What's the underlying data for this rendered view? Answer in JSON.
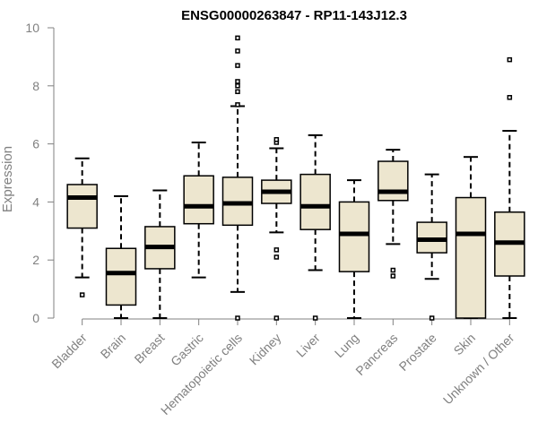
{
  "chart_data": {
    "type": "box",
    "title": "ENSG00000263847 - RP11-143J12.3",
    "ylabel": "Expression",
    "xlabel": "",
    "ylim": [
      0,
      10
    ],
    "yticks": [
      0,
      2,
      4,
      6,
      8,
      10
    ],
    "colors": {
      "box_fill": "#ede6cf",
      "box_edge": "#000000",
      "axis": "#808080",
      "text": "#808080",
      "title": "#000000"
    },
    "categories": [
      "Bladder",
      "Brain",
      "Breast",
      "Gastric",
      "Hematopoietic cells",
      "Kidney",
      "Liver",
      "Lung",
      "Pancreas",
      "Prostate",
      "Skin",
      "Unknown / Other"
    ],
    "boxes": [
      {
        "name": "Bladder",
        "lower_whisker": 1.4,
        "q1": 3.1,
        "median": 4.15,
        "q3": 4.6,
        "upper_whisker": 5.5,
        "outliers": [
          0.8
        ]
      },
      {
        "name": "Brain",
        "lower_whisker": 0.0,
        "q1": 0.45,
        "median": 1.55,
        "q3": 2.4,
        "upper_whisker": 4.2,
        "outliers": []
      },
      {
        "name": "Breast",
        "lower_whisker": 0.0,
        "q1": 1.7,
        "median": 2.45,
        "q3": 3.15,
        "upper_whisker": 4.4,
        "outliers": []
      },
      {
        "name": "Gastric",
        "lower_whisker": 1.4,
        "q1": 3.25,
        "median": 3.85,
        "q3": 4.9,
        "upper_whisker": 6.05,
        "outliers": []
      },
      {
        "name": "Hematopoietic cells",
        "lower_whisker": 0.9,
        "q1": 3.2,
        "median": 3.95,
        "q3": 4.85,
        "upper_whisker": 7.3,
        "outliers": [
          0.0,
          7.35,
          7.8,
          8.0,
          8.15,
          8.7,
          9.2,
          9.65
        ]
      },
      {
        "name": "Kidney",
        "lower_whisker": 2.95,
        "q1": 3.95,
        "median": 4.35,
        "q3": 4.75,
        "upper_whisker": 5.85,
        "outliers": [
          0.0,
          2.1,
          2.35,
          6.05,
          6.15
        ]
      },
      {
        "name": "Liver",
        "lower_whisker": 1.65,
        "q1": 3.05,
        "median": 3.85,
        "q3": 4.95,
        "upper_whisker": 6.3,
        "outliers": [
          0.0
        ]
      },
      {
        "name": "Lung",
        "lower_whisker": 0.0,
        "q1": 1.6,
        "median": 2.9,
        "q3": 4.0,
        "upper_whisker": 4.75,
        "outliers": []
      },
      {
        "name": "Pancreas",
        "lower_whisker": 2.55,
        "q1": 4.05,
        "median": 4.35,
        "q3": 5.4,
        "upper_whisker": 5.8,
        "outliers": [
          1.45,
          1.65
        ]
      },
      {
        "name": "Prostate",
        "lower_whisker": 1.35,
        "q1": 2.25,
        "median": 2.7,
        "q3": 3.3,
        "upper_whisker": 4.95,
        "outliers": [
          0.0
        ]
      },
      {
        "name": "Skin",
        "lower_whisker": 0.0,
        "q1": 0.0,
        "median": 2.9,
        "q3": 4.15,
        "upper_whisker": 5.55,
        "outliers": []
      },
      {
        "name": "Unknown / Other",
        "lower_whisker": 0.0,
        "q1": 1.45,
        "median": 2.6,
        "q3": 3.65,
        "upper_whisker": 6.45,
        "outliers": [
          7.6,
          8.9
        ]
      }
    ]
  }
}
